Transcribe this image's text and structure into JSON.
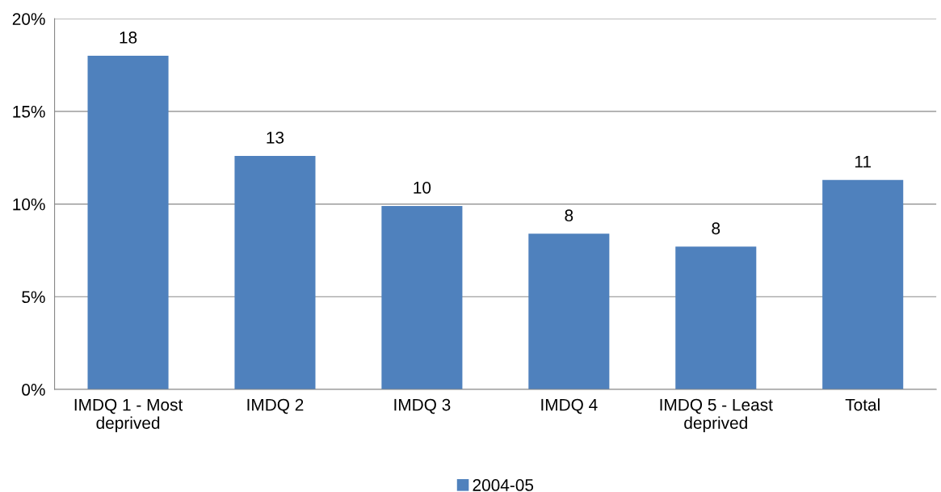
{
  "chart_data": {
    "type": "bar",
    "categories": [
      "IMDQ 1 - Most deprived",
      "IMDQ 2",
      "IMDQ 3",
      "IMDQ 4",
      "IMDQ 5 - Least deprived",
      "Total"
    ],
    "series": [
      {
        "name": "2004-05",
        "color": "#4f81bd",
        "values": [
          18.0,
          12.6,
          9.9,
          8.4,
          7.7,
          11.3
        ]
      }
    ],
    "value_labels": [
      "18",
      "13",
      "10",
      "8",
      "8",
      "11"
    ],
    "ylim": [
      0,
      20
    ],
    "yticks": [
      {
        "value": 0,
        "label": "0%"
      },
      {
        "value": 5,
        "label": "5%"
      },
      {
        "value": 10,
        "label": "10%"
      },
      {
        "value": 15,
        "label": "15%"
      },
      {
        "value": 20,
        "label": "20%"
      }
    ],
    "grid": "y",
    "legend": "bottom"
  }
}
